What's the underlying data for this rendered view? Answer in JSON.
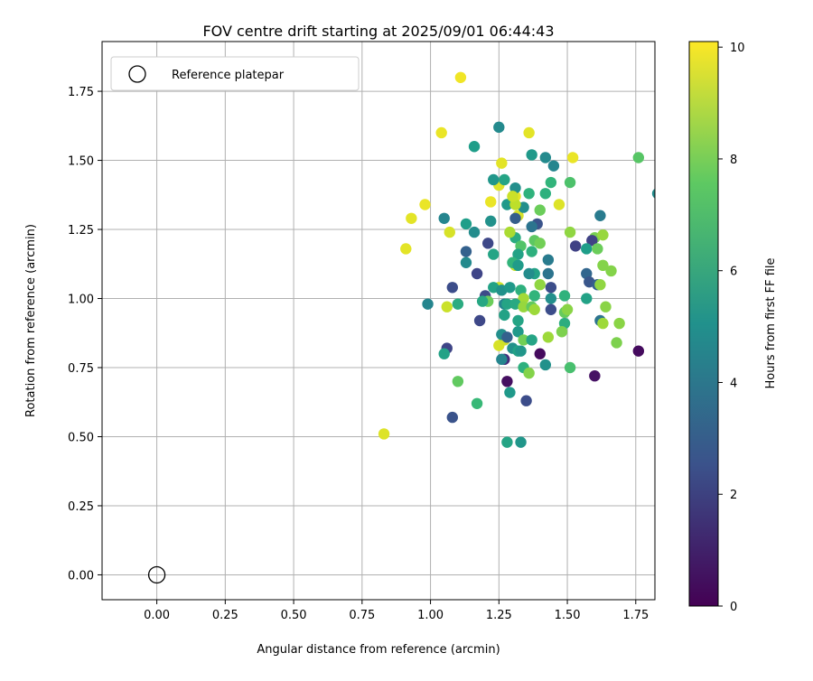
{
  "chart_data": {
    "type": "scatter",
    "title": "FOV centre drift starting at 2025/09/01 06:44:43",
    "xlabel": "Angular distance from reference (arcmin)",
    "ylabel": "Rotation from reference (arcmin)",
    "xlim": [
      -0.2,
      1.82
    ],
    "ylim": [
      -0.09,
      1.93
    ],
    "xticks": [
      "0.00",
      "0.25",
      "0.50",
      "0.75",
      "1.00",
      "1.25",
      "1.50",
      "1.75"
    ],
    "yticks": [
      "0.00",
      "0.25",
      "0.50",
      "0.75",
      "1.00",
      "1.25",
      "1.50",
      "1.75"
    ],
    "grid": true,
    "legend": {
      "position": "top-left",
      "entries": [
        "Reference platepar"
      ]
    },
    "reference_point": {
      "x": 0.0,
      "y": 0.0,
      "label": "Reference platepar"
    },
    "colorbar": {
      "label": "Hours from first FF file",
      "range": [
        0,
        10.1
      ],
      "ticks": [
        "0",
        "2",
        "4",
        "6",
        "8",
        "10"
      ],
      "colormap": "viridis"
    },
    "series": [
      {
        "points": [
          [
            1.11,
            1.8,
            9.9
          ],
          [
            1.04,
            1.6,
            9.8
          ],
          [
            1.36,
            1.6,
            9.7
          ],
          [
            1.52,
            1.51,
            9.8
          ],
          [
            1.26,
            1.49,
            9.7
          ],
          [
            1.25,
            1.41,
            9.6
          ],
          [
            1.22,
            1.35,
            9.8
          ],
          [
            0.98,
            1.34,
            9.8
          ],
          [
            1.31,
            1.37,
            9.7
          ],
          [
            1.47,
            1.34,
            9.6
          ],
          [
            1.32,
            1.3,
            9.5
          ],
          [
            0.93,
            1.29,
            9.7
          ],
          [
            1.07,
            1.24,
            9.5
          ],
          [
            0.91,
            1.18,
            9.7
          ],
          [
            1.31,
            1.12,
            9.3
          ],
          [
            1.25,
            1.04,
            9.4
          ],
          [
            1.06,
            0.97,
            9.3
          ],
          [
            1.25,
            0.83,
            9.5
          ],
          [
            1.27,
            0.85,
            9.4
          ],
          [
            0.83,
            0.51,
            9.6
          ],
          [
            1.25,
            1.62,
            4.8
          ],
          [
            1.16,
            1.55,
            5.6
          ],
          [
            1.37,
            1.52,
            5.4
          ],
          [
            1.42,
            1.51,
            4.8
          ],
          [
            1.45,
            1.48,
            4.6
          ],
          [
            1.23,
            1.43,
            5.3
          ],
          [
            1.27,
            1.43,
            5.9
          ],
          [
            1.31,
            1.4,
            5.0
          ],
          [
            1.36,
            1.38,
            6.5
          ],
          [
            1.42,
            1.38,
            6.4
          ],
          [
            1.44,
            1.42,
            6.6
          ],
          [
            1.51,
            1.42,
            7.2
          ],
          [
            1.28,
            1.34,
            5.4
          ],
          [
            1.34,
            1.33,
            5.0
          ],
          [
            1.31,
            1.29,
            3.0
          ],
          [
            1.39,
            1.27,
            2.6
          ],
          [
            1.37,
            1.26,
            3.9
          ],
          [
            1.4,
            1.32,
            7.8
          ],
          [
            1.05,
            1.29,
            4.6
          ],
          [
            1.13,
            1.27,
            5.6
          ],
          [
            1.16,
            1.24,
            4.9
          ],
          [
            1.22,
            1.28,
            5.1
          ],
          [
            1.62,
            1.3,
            4.2
          ],
          [
            1.51,
            1.24,
            8.4
          ],
          [
            1.6,
            1.22,
            8.0
          ],
          [
            1.63,
            1.23,
            8.5
          ],
          [
            1.59,
            1.21,
            2.0
          ],
          [
            1.53,
            1.19,
            2.0
          ],
          [
            1.57,
            1.18,
            5.6
          ],
          [
            1.61,
            1.18,
            7.8
          ],
          [
            1.31,
            1.22,
            6.2
          ],
          [
            1.38,
            1.21,
            7.5
          ],
          [
            1.4,
            1.2,
            7.9
          ],
          [
            1.33,
            1.19,
            7.3
          ],
          [
            1.37,
            1.17,
            6.4
          ],
          [
            1.21,
            1.2,
            2.2
          ],
          [
            1.23,
            1.16,
            5.9
          ],
          [
            1.13,
            1.17,
            3.1
          ],
          [
            1.13,
            1.13,
            4.8
          ],
          [
            1.32,
            1.16,
            5.8
          ],
          [
            1.3,
            1.13,
            6.6
          ],
          [
            1.32,
            1.12,
            5.5
          ],
          [
            1.43,
            1.14,
            4.2
          ],
          [
            1.38,
            1.09,
            5.8
          ],
          [
            1.36,
            1.09,
            4.9
          ],
          [
            1.43,
            1.09,
            3.9
          ],
          [
            1.57,
            1.09,
            3.3
          ],
          [
            1.63,
            1.12,
            8.2
          ],
          [
            1.66,
            1.1,
            8.2
          ],
          [
            1.4,
            1.05,
            8.4
          ],
          [
            1.44,
            1.04,
            2.4
          ],
          [
            1.58,
            1.06,
            2.7
          ],
          [
            1.61,
            1.05,
            3.1
          ],
          [
            1.62,
            1.05,
            8.4
          ],
          [
            1.17,
            1.09,
            2.1
          ],
          [
            1.08,
            1.04,
            2.4
          ],
          [
            1.23,
            1.04,
            5.8
          ],
          [
            1.26,
            1.03,
            5.1
          ],
          [
            1.29,
            1.04,
            5.4
          ],
          [
            1.33,
            1.03,
            6.4
          ],
          [
            1.34,
            1.0,
            8.7
          ],
          [
            1.38,
            1.01,
            6.6
          ],
          [
            1.44,
            1.0,
            5.0
          ],
          [
            1.49,
            1.01,
            6.5
          ],
          [
            1.57,
            1.0,
            5.8
          ],
          [
            1.2,
            1.01,
            2.3
          ],
          [
            1.21,
            0.99,
            7.8
          ],
          [
            1.19,
            0.99,
            6.0
          ],
          [
            0.99,
            0.98,
            4.6
          ],
          [
            1.1,
            0.98,
            6.2
          ],
          [
            1.27,
            0.98,
            4.6
          ],
          [
            1.28,
            0.98,
            5.9
          ],
          [
            1.31,
            0.98,
            6.1
          ],
          [
            1.34,
            0.97,
            8.5
          ],
          [
            1.37,
            0.97,
            7.6
          ],
          [
            1.38,
            0.96,
            8.6
          ],
          [
            1.44,
            0.96,
            2.4
          ],
          [
            1.49,
            0.95,
            7.7
          ],
          [
            1.5,
            0.96,
            8.3
          ],
          [
            1.64,
            0.97,
            8.3
          ],
          [
            1.27,
            0.94,
            5.8
          ],
          [
            1.18,
            0.92,
            2.2
          ],
          [
            1.32,
            0.92,
            5.9
          ],
          [
            1.49,
            0.91,
            6.3
          ],
          [
            1.62,
            0.92,
            3.9
          ],
          [
            1.63,
            0.91,
            8.6
          ],
          [
            1.69,
            0.91,
            8.3
          ],
          [
            1.32,
            0.88,
            5.4
          ],
          [
            1.26,
            0.87,
            5.0
          ],
          [
            1.28,
            0.86,
            3.1
          ],
          [
            1.34,
            0.85,
            7.9
          ],
          [
            1.37,
            0.85,
            5.9
          ],
          [
            1.43,
            0.86,
            8.6
          ],
          [
            1.48,
            0.88,
            8.1
          ],
          [
            1.68,
            0.84,
            8.1
          ],
          [
            1.06,
            0.82,
            2.1
          ],
          [
            1.3,
            0.82,
            5.1
          ],
          [
            1.32,
            0.81,
            5.8
          ],
          [
            1.33,
            0.81,
            5.3
          ],
          [
            1.4,
            0.8,
            0.3
          ],
          [
            1.76,
            0.81,
            0.3
          ],
          [
            1.05,
            0.8,
            5.8
          ],
          [
            1.27,
            0.78,
            1.3
          ],
          [
            1.26,
            0.78,
            4.6
          ],
          [
            1.42,
            0.76,
            5.1
          ],
          [
            1.51,
            0.75,
            7.1
          ],
          [
            1.34,
            0.75,
            6.4
          ],
          [
            1.36,
            0.73,
            8.2
          ],
          [
            1.28,
            0.7,
            0.4
          ],
          [
            1.1,
            0.7,
            7.6
          ],
          [
            1.6,
            0.72,
            0.5
          ],
          [
            1.29,
            0.66,
            5.4
          ],
          [
            1.35,
            0.63,
            2.4
          ],
          [
            1.17,
            0.62,
            6.8
          ],
          [
            1.08,
            0.57,
            2.6
          ],
          [
            1.28,
            0.48,
            5.9
          ],
          [
            1.33,
            0.48,
            5.3
          ],
          [
            1.76,
            1.51,
            7.4
          ],
          [
            1.83,
            1.38,
            4.9
          ],
          [
            1.31,
            1.34,
            9.1
          ],
          [
            1.3,
            1.37,
            9.3
          ],
          [
            1.29,
            1.24,
            8.8
          ]
        ]
      }
    ]
  }
}
